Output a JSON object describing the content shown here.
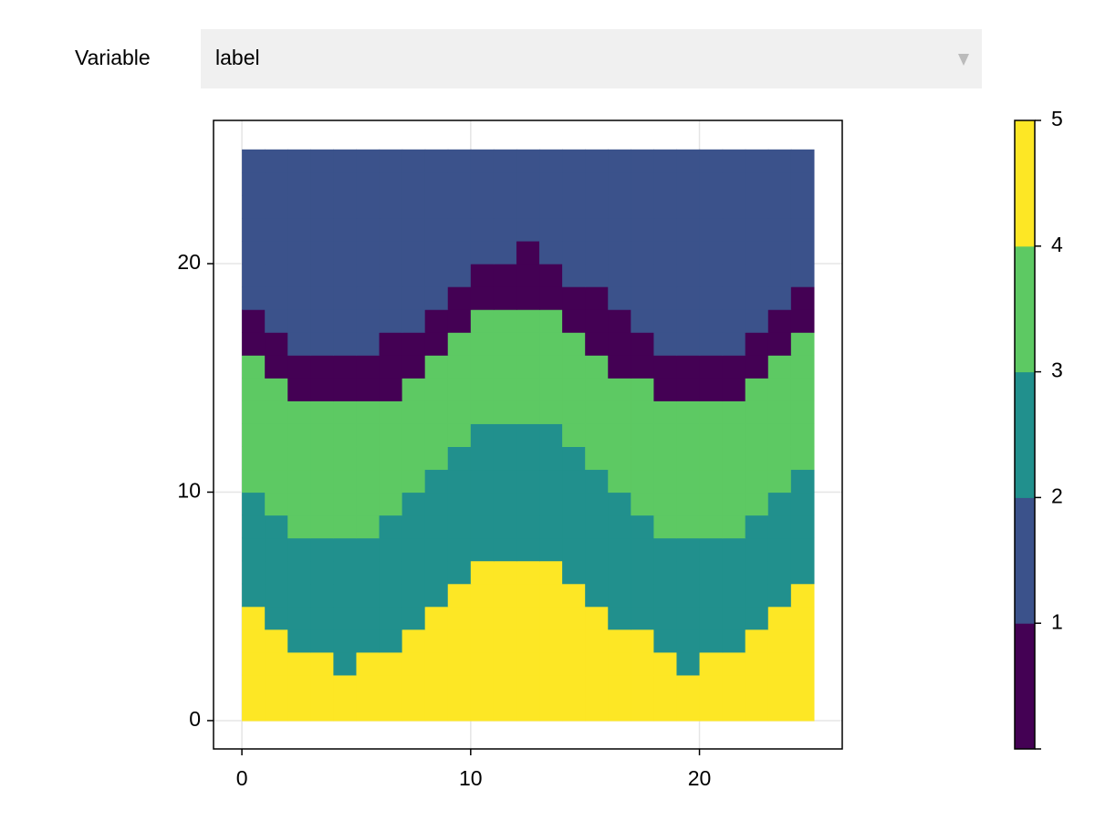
{
  "menu": {
    "label": "Variable",
    "selected": "label"
  },
  "chart_data": {
    "type": "heatmap",
    "x": [
      0.5,
      1.5,
      2.5,
      3.5,
      4.5,
      5.5,
      6.5,
      7.5,
      8.5,
      9.5,
      10.5,
      11.5,
      12.5,
      13.5,
      14.5,
      15.5,
      16.5,
      17.5,
      18.5,
      19.5,
      20.5,
      21.5,
      22.5,
      23.5,
      24.5
    ],
    "y": [
      0.5,
      1.5,
      2.5,
      3.5,
      4.5,
      5.5,
      6.5,
      7.5,
      8.5,
      9.5,
      10.5,
      11.5,
      12.5,
      13.5,
      14.5,
      15.5,
      16.5,
      17.5,
      18.5,
      19.5,
      20.5,
      21.5,
      22.5,
      23.5,
      24.5
    ],
    "z": [
      [
        5,
        5,
        5,
        5,
        5,
        5,
        5,
        5,
        5,
        5,
        5,
        5,
        5,
        5,
        5,
        5,
        5,
        5,
        5,
        5,
        5,
        5,
        5,
        5,
        5
      ],
      [
        5,
        5,
        5,
        5,
        5,
        5,
        5,
        5,
        5,
        5,
        5,
        5,
        5,
        5,
        5,
        5,
        5,
        5,
        5,
        5,
        5,
        5,
        5,
        5,
        5
      ],
      [
        5,
        5,
        5,
        5,
        3,
        5,
        5,
        5,
        5,
        5,
        5,
        5,
        5,
        5,
        5,
        5,
        5,
        5,
        5,
        3,
        5,
        5,
        5,
        5,
        5
      ],
      [
        5,
        5,
        3,
        3,
        3,
        3,
        3,
        5,
        5,
        5,
        5,
        5,
        5,
        5,
        5,
        5,
        5,
        5,
        3,
        3,
        3,
        3,
        5,
        5,
        5
      ],
      [
        5,
        3,
        3,
        3,
        3,
        3,
        3,
        3,
        5,
        5,
        5,
        5,
        5,
        5,
        5,
        5,
        3,
        3,
        3,
        3,
        3,
        3,
        3,
        5,
        5
      ],
      [
        3,
        3,
        3,
        3,
        3,
        3,
        3,
        3,
        3,
        5,
        5,
        5,
        5,
        5,
        5,
        3,
        3,
        3,
        3,
        3,
        3,
        3,
        3,
        3,
        5
      ],
      [
        3,
        3,
        3,
        3,
        3,
        3,
        3,
        3,
        3,
        3,
        5,
        5,
        5,
        5,
        3,
        3,
        3,
        3,
        3,
        3,
        3,
        3,
        3,
        3,
        3
      ],
      [
        3,
        3,
        3,
        3,
        3,
        3,
        3,
        3,
        3,
        3,
        3,
        3,
        3,
        3,
        3,
        3,
        3,
        3,
        3,
        3,
        3,
        3,
        3,
        3,
        3
      ],
      [
        3,
        3,
        4,
        4,
        4,
        4,
        3,
        3,
        3,
        3,
        3,
        3,
        3,
        3,
        3,
        3,
        3,
        3,
        4,
        4,
        4,
        4,
        3,
        3,
        3
      ],
      [
        3,
        4,
        4,
        4,
        4,
        4,
        4,
        3,
        3,
        3,
        3,
        3,
        3,
        3,
        3,
        3,
        3,
        4,
        4,
        4,
        4,
        4,
        4,
        3,
        3
      ],
      [
        4,
        4,
        4,
        4,
        4,
        4,
        4,
        4,
        3,
        3,
        3,
        3,
        3,
        3,
        3,
        3,
        4,
        4,
        4,
        4,
        4,
        4,
        4,
        4,
        3
      ],
      [
        4,
        4,
        4,
        4,
        4,
        4,
        4,
        4,
        4,
        3,
        3,
        3,
        3,
        3,
        3,
        4,
        4,
        4,
        4,
        4,
        4,
        4,
        4,
        4,
        4
      ],
      [
        4,
        4,
        4,
        4,
        4,
        4,
        4,
        4,
        4,
        4,
        3,
        3,
        3,
        3,
        4,
        4,
        4,
        4,
        4,
        4,
        4,
        4,
        4,
        4,
        4
      ],
      [
        4,
        4,
        4,
        4,
        4,
        4,
        4,
        4,
        4,
        4,
        4,
        4,
        4,
        4,
        4,
        4,
        4,
        4,
        4,
        4,
        4,
        4,
        4,
        4,
        4
      ],
      [
        4,
        4,
        1,
        1,
        1,
        1,
        1,
        4,
        4,
        4,
        4,
        4,
        4,
        4,
        4,
        4,
        4,
        4,
        1,
        1,
        1,
        1,
        4,
        4,
        4
      ],
      [
        4,
        1,
        1,
        1,
        1,
        1,
        1,
        1,
        4,
        4,
        4,
        4,
        4,
        4,
        4,
        4,
        1,
        1,
        1,
        1,
        1,
        1,
        1,
        4,
        4
      ],
      [
        1,
        1,
        2,
        2,
        2,
        2,
        1,
        1,
        1,
        4,
        4,
        4,
        4,
        4,
        4,
        1,
        1,
        1,
        2,
        2,
        2,
        2,
        1,
        1,
        4
      ],
      [
        1,
        2,
        2,
        2,
        2,
        2,
        2,
        2,
        1,
        1,
        4,
        4,
        4,
        4,
        1,
        1,
        1,
        2,
        2,
        2,
        2,
        2,
        2,
        1,
        1
      ],
      [
        2,
        2,
        2,
        2,
        2,
        2,
        2,
        2,
        2,
        1,
        1,
        1,
        1,
        1,
        1,
        1,
        2,
        2,
        2,
        2,
        2,
        2,
        2,
        2,
        1
      ],
      [
        2,
        2,
        2,
        2,
        2,
        2,
        2,
        2,
        2,
        2,
        1,
        1,
        1,
        1,
        2,
        2,
        2,
        2,
        2,
        2,
        2,
        2,
        2,
        2,
        2
      ],
      [
        2,
        2,
        2,
        2,
        2,
        2,
        2,
        2,
        2,
        2,
        2,
        2,
        1,
        2,
        2,
        2,
        2,
        2,
        2,
        2,
        2,
        2,
        2,
        2,
        2
      ],
      [
        2,
        2,
        2,
        2,
        2,
        2,
        2,
        2,
        2,
        2,
        2,
        2,
        2,
        2,
        2,
        2,
        2,
        2,
        2,
        2,
        2,
        2,
        2,
        2,
        2
      ],
      [
        2,
        2,
        2,
        2,
        2,
        2,
        2,
        2,
        2,
        2,
        2,
        2,
        2,
        2,
        2,
        2,
        2,
        2,
        2,
        2,
        2,
        2,
        2,
        2,
        2
      ],
      [
        2,
        2,
        2,
        2,
        2,
        2,
        2,
        2,
        2,
        2,
        2,
        2,
        2,
        2,
        2,
        2,
        2,
        2,
        2,
        2,
        2,
        2,
        2,
        2,
        2
      ],
      [
        2,
        2,
        2,
        2,
        2,
        2,
        2,
        2,
        2,
        2,
        2,
        2,
        2,
        2,
        2,
        2,
        2,
        2,
        2,
        2,
        2,
        2,
        2,
        2,
        2
      ]
    ],
    "colors": [
      "#440154",
      "#3b528b",
      "#21908d",
      "#5dc963",
      "#fde725"
    ],
    "xlim": [
      -1.24,
      26.24
    ],
    "ylim": [
      -1.24,
      26.27
    ],
    "xticks": [
      0,
      10,
      20
    ],
    "yticks": [
      0,
      10,
      20
    ],
    "grid": true,
    "colorbar": {
      "lim": [
        0,
        5
      ],
      "ticks": [
        1,
        2,
        3,
        4,
        5
      ]
    }
  }
}
